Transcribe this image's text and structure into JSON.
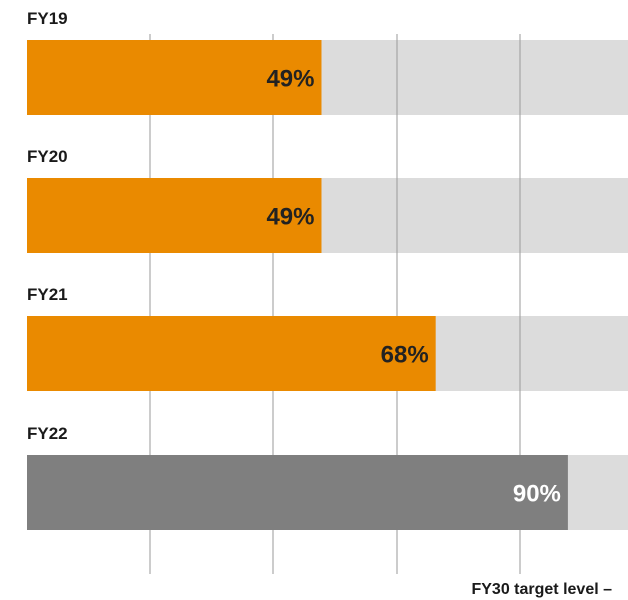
{
  "chart_data": {
    "type": "bar",
    "orientation": "horizontal",
    "categories": [
      "FY19",
      "FY20",
      "FY21",
      "FY22"
    ],
    "values": [
      49,
      49,
      68,
      90
    ],
    "value_labels": [
      "49%",
      "49%",
      "68%",
      "90%"
    ],
    "xlim": [
      0,
      100
    ],
    "grid": true,
    "legend": "none",
    "annotation": "FY30 target level –",
    "colors": {
      "bar": "#ea8a00",
      "bar_highlight": "#7f7f7f",
      "track": "#dcdcdc",
      "grid": "#9a9a9a",
      "label_dark": "#222222",
      "label_light": "#ffffff"
    },
    "highlight_index": 3
  }
}
